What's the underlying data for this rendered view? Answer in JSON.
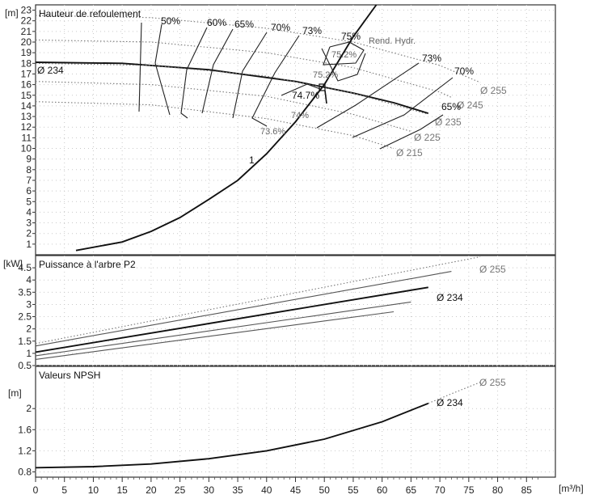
{
  "chart_data": [
    {
      "type": "line",
      "panel": "head",
      "title": "Hauteur de refoulement",
      "ylabel": "[m]",
      "xlim": [
        0,
        90
      ],
      "ylim": [
        0,
        23.5
      ],
      "xticks": [
        0,
        5,
        10,
        15,
        20,
        25,
        30,
        35,
        40,
        45,
        50,
        55,
        60,
        65,
        70,
        75,
        80,
        85
      ],
      "yticks": [
        1,
        2,
        3,
        4,
        5,
        6,
        7,
        8,
        9,
        10,
        11,
        12,
        13,
        14,
        15,
        16,
        17,
        18,
        19,
        20,
        21,
        22,
        23
      ],
      "grid": true,
      "series": [
        {
          "name": "Ø 255",
          "style": "dotted",
          "x": [
            0,
            20,
            40,
            55,
            70,
            77
          ],
          "y": [
            22.5,
            22.3,
            21.3,
            20.0,
            17.8,
            16.2
          ]
        },
        {
          "name": "Ø 245",
          "style": "dotted",
          "x": [
            0,
            20,
            40,
            55,
            70,
            72
          ],
          "y": [
            20.2,
            20.0,
            19.0,
            17.6,
            15.3,
            14.8
          ]
        },
        {
          "name": "Ø 234",
          "style": "solid",
          "x": [
            0,
            15,
            30,
            45,
            55,
            62,
            68
          ],
          "y": [
            18.1,
            18.0,
            17.4,
            16.3,
            15.2,
            14.3,
            13.3
          ]
        },
        {
          "name": "Ø 235",
          "style": "dotted",
          "x": [
            0,
            20,
            40,
            55,
            68
          ],
          "y": [
            18.0,
            17.8,
            16.8,
            15.2,
            13.2
          ]
        },
        {
          "name": "Ø 225",
          "style": "dotted",
          "x": [
            0,
            20,
            40,
            55,
            65
          ],
          "y": [
            16.3,
            16.0,
            14.9,
            13.2,
            11.6
          ]
        },
        {
          "name": "Ø 215",
          "style": "dotted",
          "x": [
            0,
            20,
            40,
            55,
            62
          ],
          "y": [
            14.4,
            14.1,
            12.8,
            11.2,
            10.0
          ]
        },
        {
          "name": "1",
          "style": "solid",
          "x": [
            7,
            15,
            20,
            25,
            30,
            35,
            40,
            45,
            50,
            55
          ],
          "y": [
            0.4,
            1.2,
            2.2,
            3.5,
            5.2,
            7.0,
            9.5,
            12.5,
            16.0,
            20.5
          ]
        },
        {
          "name": "",
          "style": "solid",
          "x": [
            55,
            59
          ],
          "y": [
            20.5,
            23.5
          ]
        }
      ],
      "efficiency_labels": [
        "50%",
        "60%",
        "65%",
        "70%",
        "73%",
        "75%",
        "75.2%",
        "75.2%",
        "74.7%",
        "74%",
        "73.6%",
        "73%",
        "70%",
        "65%"
      ],
      "rend_label": "Rend. Hydr.",
      "diameter_labels": [
        "Ø 234",
        "Ø 255",
        "Ø 245",
        "Ø 235",
        "Ø 225",
        "Ø 215"
      ],
      "curve_label": "1"
    },
    {
      "type": "line",
      "panel": "power",
      "title": "Puissance à l'arbre P2",
      "ylabel": "[kW]",
      "xlim": [
        0,
        90
      ],
      "ylim": [
        0.5,
        5
      ],
      "yticks": [
        "0.5",
        "1",
        "1.5",
        "2",
        "2.5",
        "3",
        "3.5",
        "4",
        "4.5"
      ],
      "grid": true,
      "series": [
        {
          "name": "Ø 255",
          "style": "dotted",
          "x": [
            0,
            77
          ],
          "y": [
            1.4,
            4.95
          ]
        },
        {
          "name": "Ø 245",
          "style": "solid-grey",
          "x": [
            0,
            72
          ],
          "y": [
            1.3,
            4.35
          ]
        },
        {
          "name": "Ø 234",
          "style": "solid",
          "x": [
            0,
            68
          ],
          "y": [
            1.05,
            3.7
          ]
        },
        {
          "name": "Ø 225",
          "style": "solid-grey",
          "x": [
            0,
            65
          ],
          "y": [
            0.9,
            3.1
          ]
        },
        {
          "name": "Ø 215",
          "style": "solid-grey",
          "x": [
            0,
            62
          ],
          "y": [
            0.75,
            2.7
          ]
        }
      ],
      "diameter_labels": [
        "Ø 255",
        "Ø 234"
      ]
    },
    {
      "type": "line",
      "panel": "npsh",
      "title": "Valeurs NPSH",
      "ylabel": "[m]",
      "xlabel": "[m³/h]",
      "xlim": [
        0,
        90
      ],
      "ylim": [
        0.7,
        2.8
      ],
      "xticks": [
        0,
        5,
        10,
        15,
        20,
        25,
        30,
        35,
        40,
        45,
        50,
        55,
        60,
        65,
        70,
        75,
        80,
        85
      ],
      "yticks": [
        "0.8",
        "1.2",
        "1.6",
        "2"
      ],
      "grid": true,
      "series": [
        {
          "name": "Ø 234",
          "style": "solid",
          "x": [
            0,
            10,
            20,
            30,
            40,
            50,
            60,
            68
          ],
          "y": [
            0.88,
            0.9,
            0.95,
            1.05,
            1.2,
            1.42,
            1.75,
            2.1
          ]
        },
        {
          "name": "Ø 255",
          "style": "dotted",
          "x": [
            68,
            72,
            77
          ],
          "y": [
            2.1,
            2.28,
            2.5
          ]
        }
      ],
      "diameter_labels": [
        "Ø 255",
        "Ø 234"
      ]
    }
  ]
}
